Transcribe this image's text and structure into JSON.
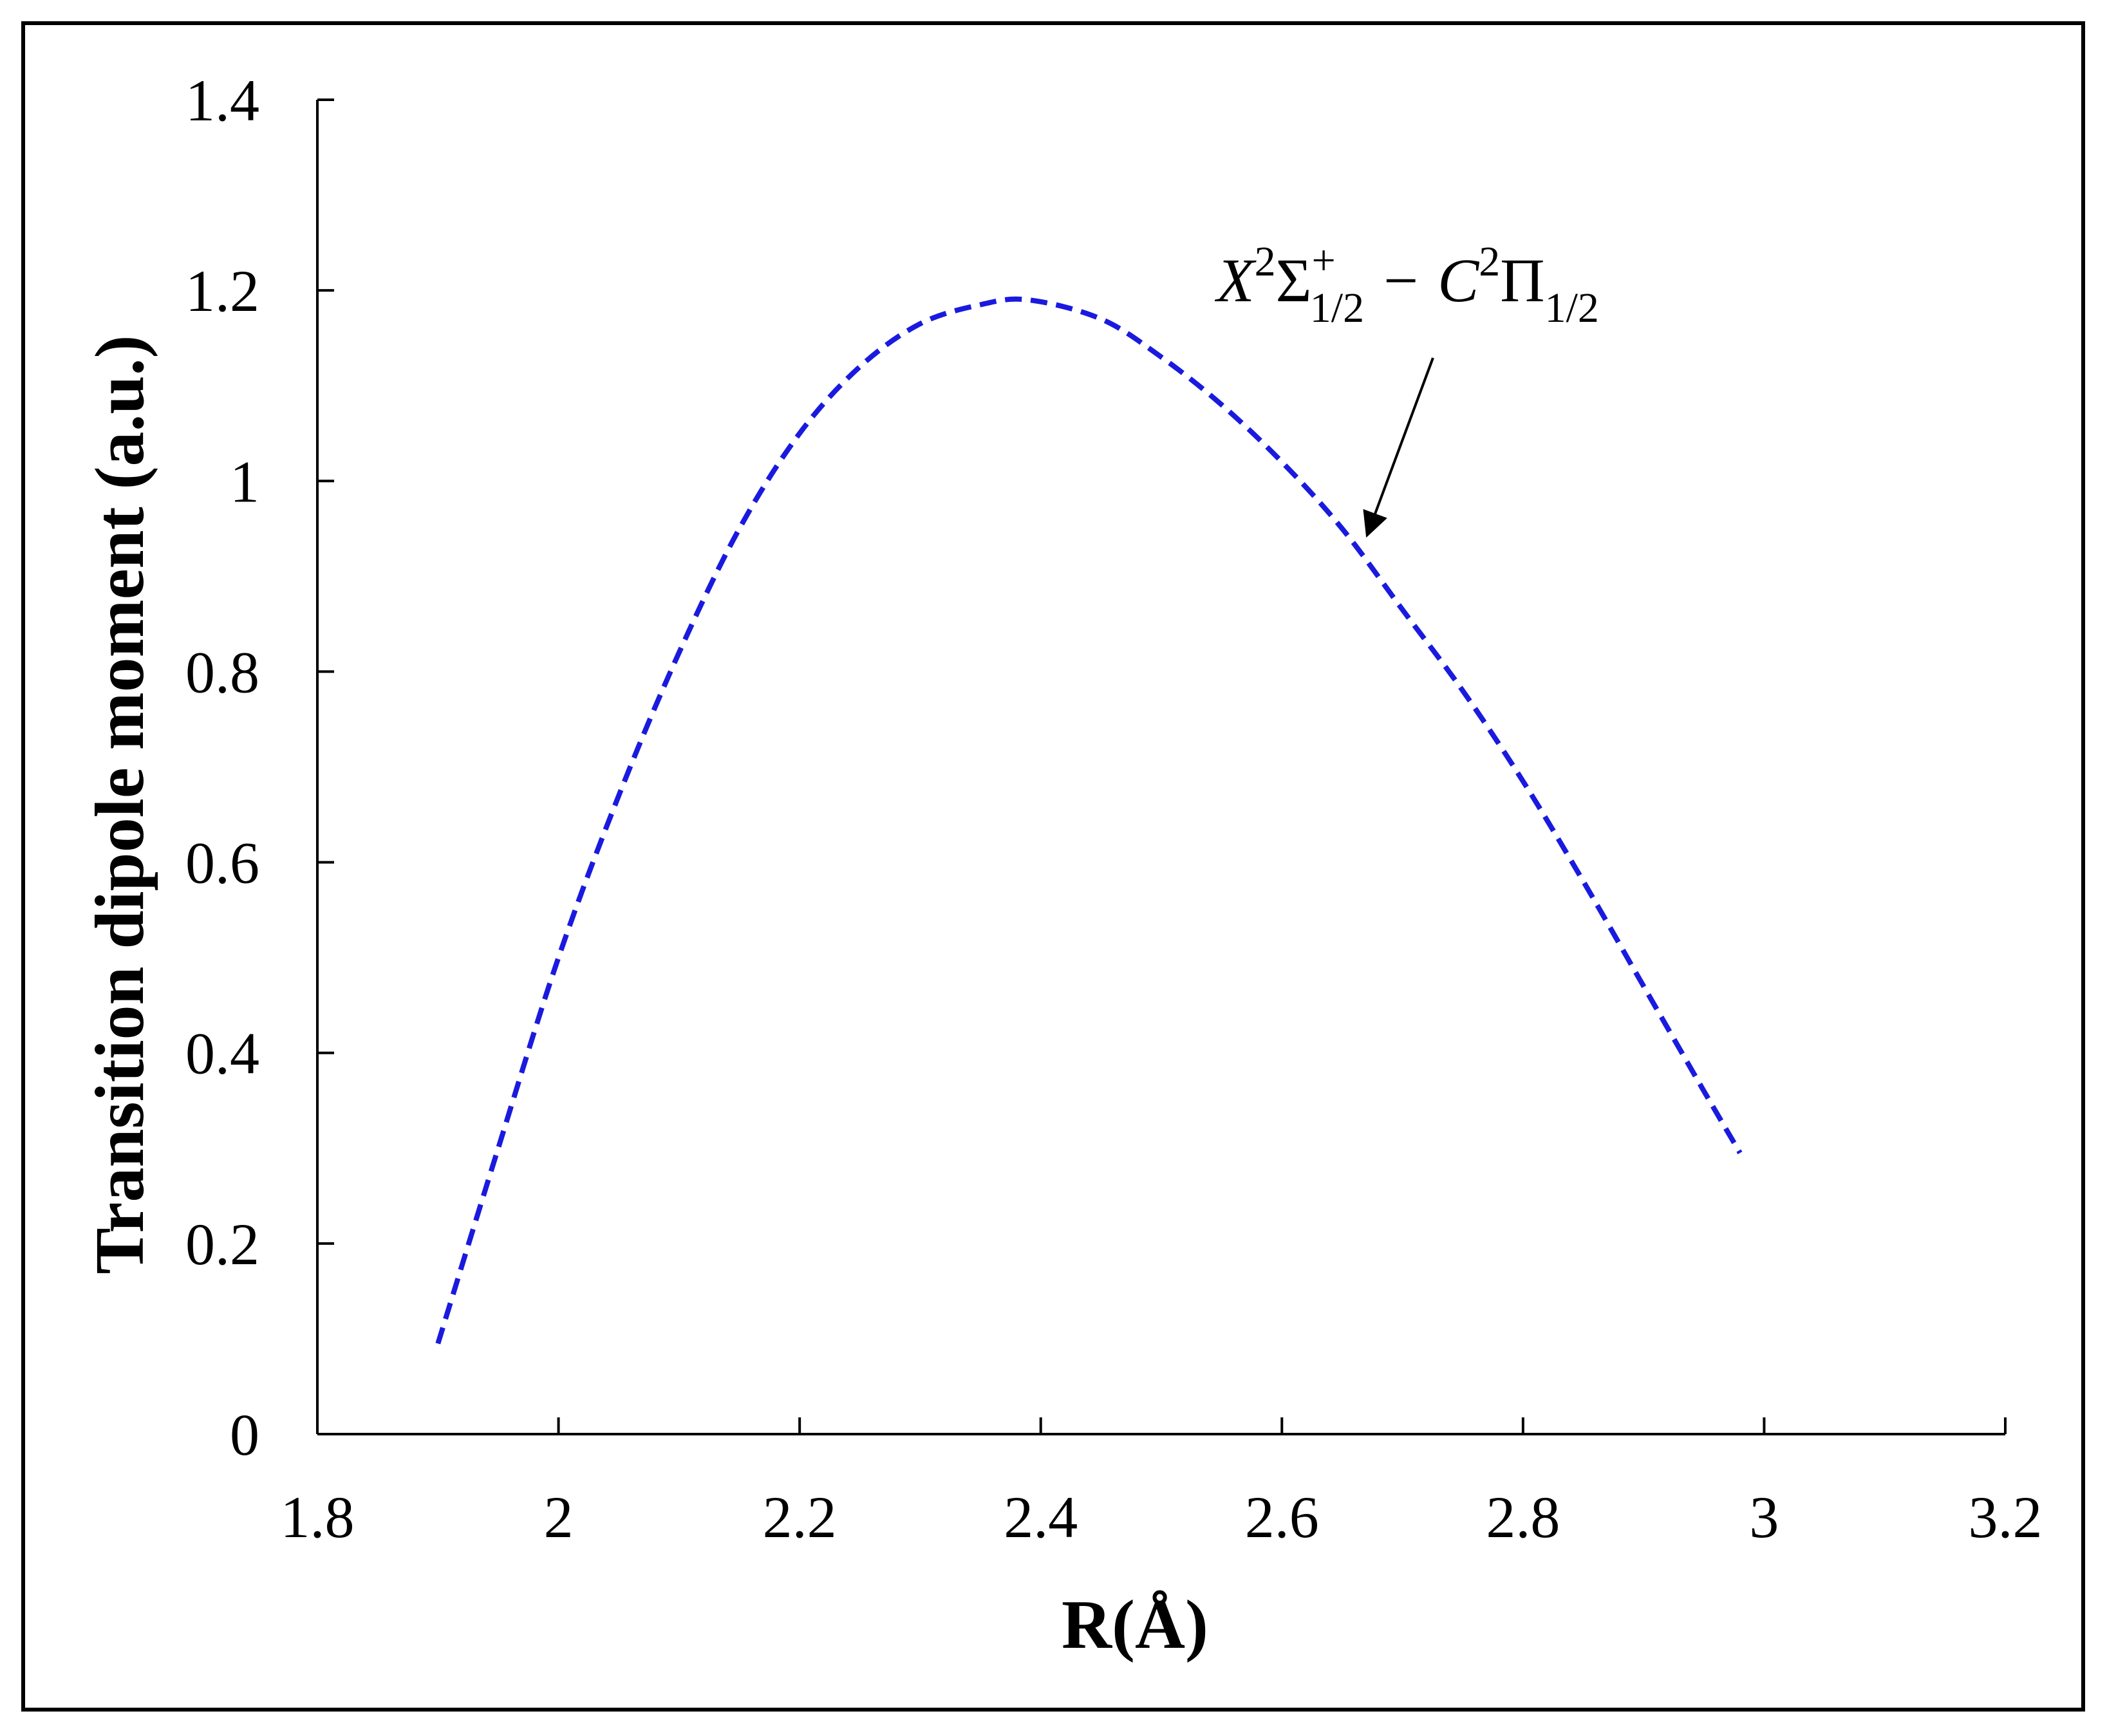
{
  "chart_data": {
    "type": "line",
    "title": "",
    "xlabel": "R(Å)",
    "ylabel": "Transition dipole moment (a.u.)",
    "xlim": [
      1.8,
      3.2
    ],
    "ylim": [
      0,
      1.4
    ],
    "xticks": [
      "1.8",
      "2",
      "2.2",
      "2.4",
      "2.6",
      "2.8",
      "3",
      "3.2"
    ],
    "yticks": [
      "0",
      "0.2",
      "0.4",
      "0.6",
      "0.8",
      "1",
      "1.2",
      "1.4"
    ],
    "grid": false,
    "legend": "none",
    "series": [
      {
        "name": "",
        "line_style": "dashed",
        "color": "#1a1adf",
        "x": [
          1.9,
          1.95,
          2.0,
          2.05,
          2.1,
          2.15,
          2.2,
          2.25,
          2.3,
          2.35,
          2.39,
          2.45,
          2.5,
          2.55,
          2.6,
          2.65,
          2.7,
          2.75,
          2.8,
          2.85,
          2.9,
          2.95,
          2.98
        ],
        "y": [
          0.095,
          0.3,
          0.5,
          0.67,
          0.82,
          0.95,
          1.05,
          1.12,
          1.165,
          1.185,
          1.19,
          1.17,
          1.13,
          1.08,
          1.02,
          0.95,
          0.865,
          0.78,
          0.685,
          0.58,
          0.47,
          0.36,
          0.295
        ]
      }
    ],
    "annotation": {
      "label": "X²Σ⁺₁/₂ − C²Π₁/₂",
      "parts": {
        "a": "X",
        "a_sup": "2",
        "b": "Σ",
        "b_sup": "+",
        "b_sub": "1/2",
        "dash": "−",
        "c": "C",
        "c_sup": "2",
        "d": "Π",
        "d_sub": "1/2"
      },
      "points_to": {
        "x": 2.66,
        "y": 0.96
      }
    }
  }
}
